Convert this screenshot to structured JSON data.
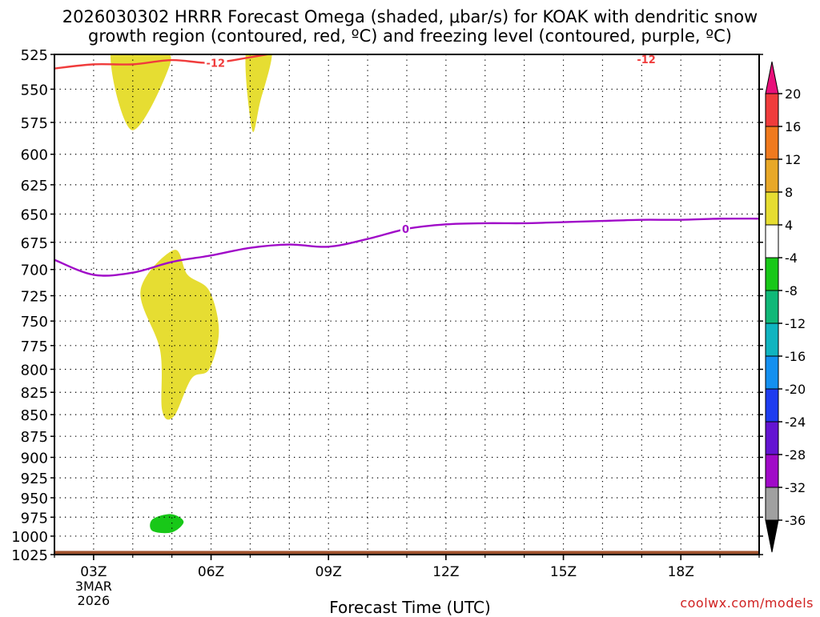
{
  "title_line1": "2026030302 HRRR Forecast Omega (shaded, μbar/s) for KOAK with dendritic snow",
  "title_line2": "growth region (contoured, red, ºC) and freezing level (contoured, purple, ºC)",
  "credit": "coolwx.com/models",
  "chart_data": {
    "type": "heatmap",
    "title": "2026030302 HRRR Forecast Omega (shaded, μbar/s) for KOAK with dendritic snow growth region (contoured, red, ºC) and freezing level (contoured, purple, ºC)",
    "xlabel": "Forecast Time (UTC)",
    "ylabel": "",
    "xlim": [
      2,
      20
    ],
    "ylim": [
      1025,
      525
    ],
    "y_scale": "log",
    "grid": true,
    "x_ticks": [
      {
        "value": 3,
        "label": "03Z",
        "sublabels": [
          "3MAR",
          "2026"
        ]
      },
      {
        "value": 6,
        "label": "06Z",
        "sublabels": []
      },
      {
        "value": 9,
        "label": "09Z",
        "sublabels": []
      },
      {
        "value": 12,
        "label": "12Z",
        "sublabels": []
      },
      {
        "value": 15,
        "label": "15Z",
        "sublabels": []
      },
      {
        "value": 18,
        "label": "18Z",
        "sublabels": []
      }
    ],
    "y_ticks": [
      525,
      550,
      575,
      600,
      625,
      650,
      675,
      700,
      725,
      750,
      775,
      800,
      825,
      850,
      875,
      900,
      925,
      950,
      975,
      1000,
      1025
    ],
    "colorbar": {
      "labels": [
        "20",
        "16",
        "12",
        "8",
        "4",
        "-4",
        "-8",
        "-12",
        "-16",
        "-20",
        "-24",
        "-28",
        "-32",
        "-36"
      ],
      "above_max_color": "#e8107a",
      "below_min_color": "#000000",
      "bins": [
        {
          "from": 16,
          "to": 20,
          "color": "#f03c3c"
        },
        {
          "from": 12,
          "to": 16,
          "color": "#f07a1e"
        },
        {
          "from": 8,
          "to": 12,
          "color": "#e8a828"
        },
        {
          "from": 4,
          "to": 8,
          "color": "#e6dd32"
        },
        {
          "from": -4,
          "to": 4,
          "color": "#ffffff"
        },
        {
          "from": -8,
          "to": -4,
          "color": "#18c818"
        },
        {
          "from": -12,
          "to": -8,
          "color": "#10b878"
        },
        {
          "from": -16,
          "to": -12,
          "color": "#10b4c0"
        },
        {
          "from": -20,
          "to": -16,
          "color": "#1490f0"
        },
        {
          "from": -24,
          "to": -20,
          "color": "#1e3cf0"
        },
        {
          "from": -28,
          "to": -24,
          "color": "#6414d2"
        },
        {
          "from": -32,
          "to": -28,
          "color": "#a00ac8"
        },
        {
          "from": -36,
          "to": -32,
          "color": "#a0a0a0"
        }
      ]
    },
    "shaded_regions": [
      {
        "range": "4 to 8",
        "color": "#e6dd32",
        "points": [
          [
            3.45,
            522
          ],
          [
            3.98,
            581
          ],
          [
            4.95,
            532
          ],
          [
            4.6,
            522
          ]
        ]
      },
      {
        "range": "4 to 8",
        "color": "#e6dd32",
        "points": [
          [
            6.9,
            522
          ],
          [
            7.05,
            581
          ],
          [
            7.25,
            560
          ],
          [
            7.55,
            522
          ]
        ]
      },
      {
        "range": "4 to 8",
        "color": "#e6dd32",
        "points": [
          [
            5.05,
            682
          ],
          [
            4.2,
            720
          ],
          [
            4.7,
            780
          ],
          [
            4.75,
            845
          ],
          [
            5.05,
            852
          ],
          [
            5.5,
            810
          ],
          [
            5.95,
            800
          ],
          [
            6.2,
            760
          ],
          [
            5.95,
            720
          ],
          [
            5.4,
            705
          ]
        ]
      },
      {
        "range": "-8 to -4",
        "color": "#18c818",
        "points": [
          [
            4.5,
            978
          ],
          [
            4.98,
            971
          ],
          [
            5.3,
            981
          ],
          [
            5.0,
            995
          ],
          [
            4.5,
            993
          ]
        ]
      }
    ],
    "series": [
      {
        "label": "-12",
        "color": "#f03c3c",
        "x": [
          2.0,
          3.0,
          4.0,
          5.0,
          6.0,
          7.0,
          7.8,
          8.0
        ],
        "y": [
          535,
          532,
          532,
          529,
          531,
          527,
          523,
          521
        ]
      },
      {
        "label": "-12",
        "color": "#f03c3c",
        "x": [
          13.2,
          14.0,
          15.0,
          16.0,
          17.0,
          18.0,
          19.0,
          20.0
        ],
        "y": [
          521,
          522,
          524,
          524,
          523,
          522,
          522,
          521
        ]
      },
      {
        "label": "0",
        "color": "#a00ac8",
        "x": [
          2.0,
          3.0,
          4.0,
          5.0,
          6.0,
          7.0,
          8.0,
          9.0,
          10.0,
          11.0,
          12.0,
          13.0,
          14.0,
          15.0,
          16.0,
          17.0,
          18.0,
          19.0,
          20.0
        ],
        "y": [
          691,
          705,
          703,
          693,
          687,
          680,
          677,
          679,
          672,
          663,
          659,
          658,
          658,
          657,
          656,
          655,
          655,
          654,
          654
        ]
      }
    ],
    "terrain": {
      "color": "#a0522d",
      "bottom_pressure": 1025,
      "top_pressure": 1020
    }
  }
}
